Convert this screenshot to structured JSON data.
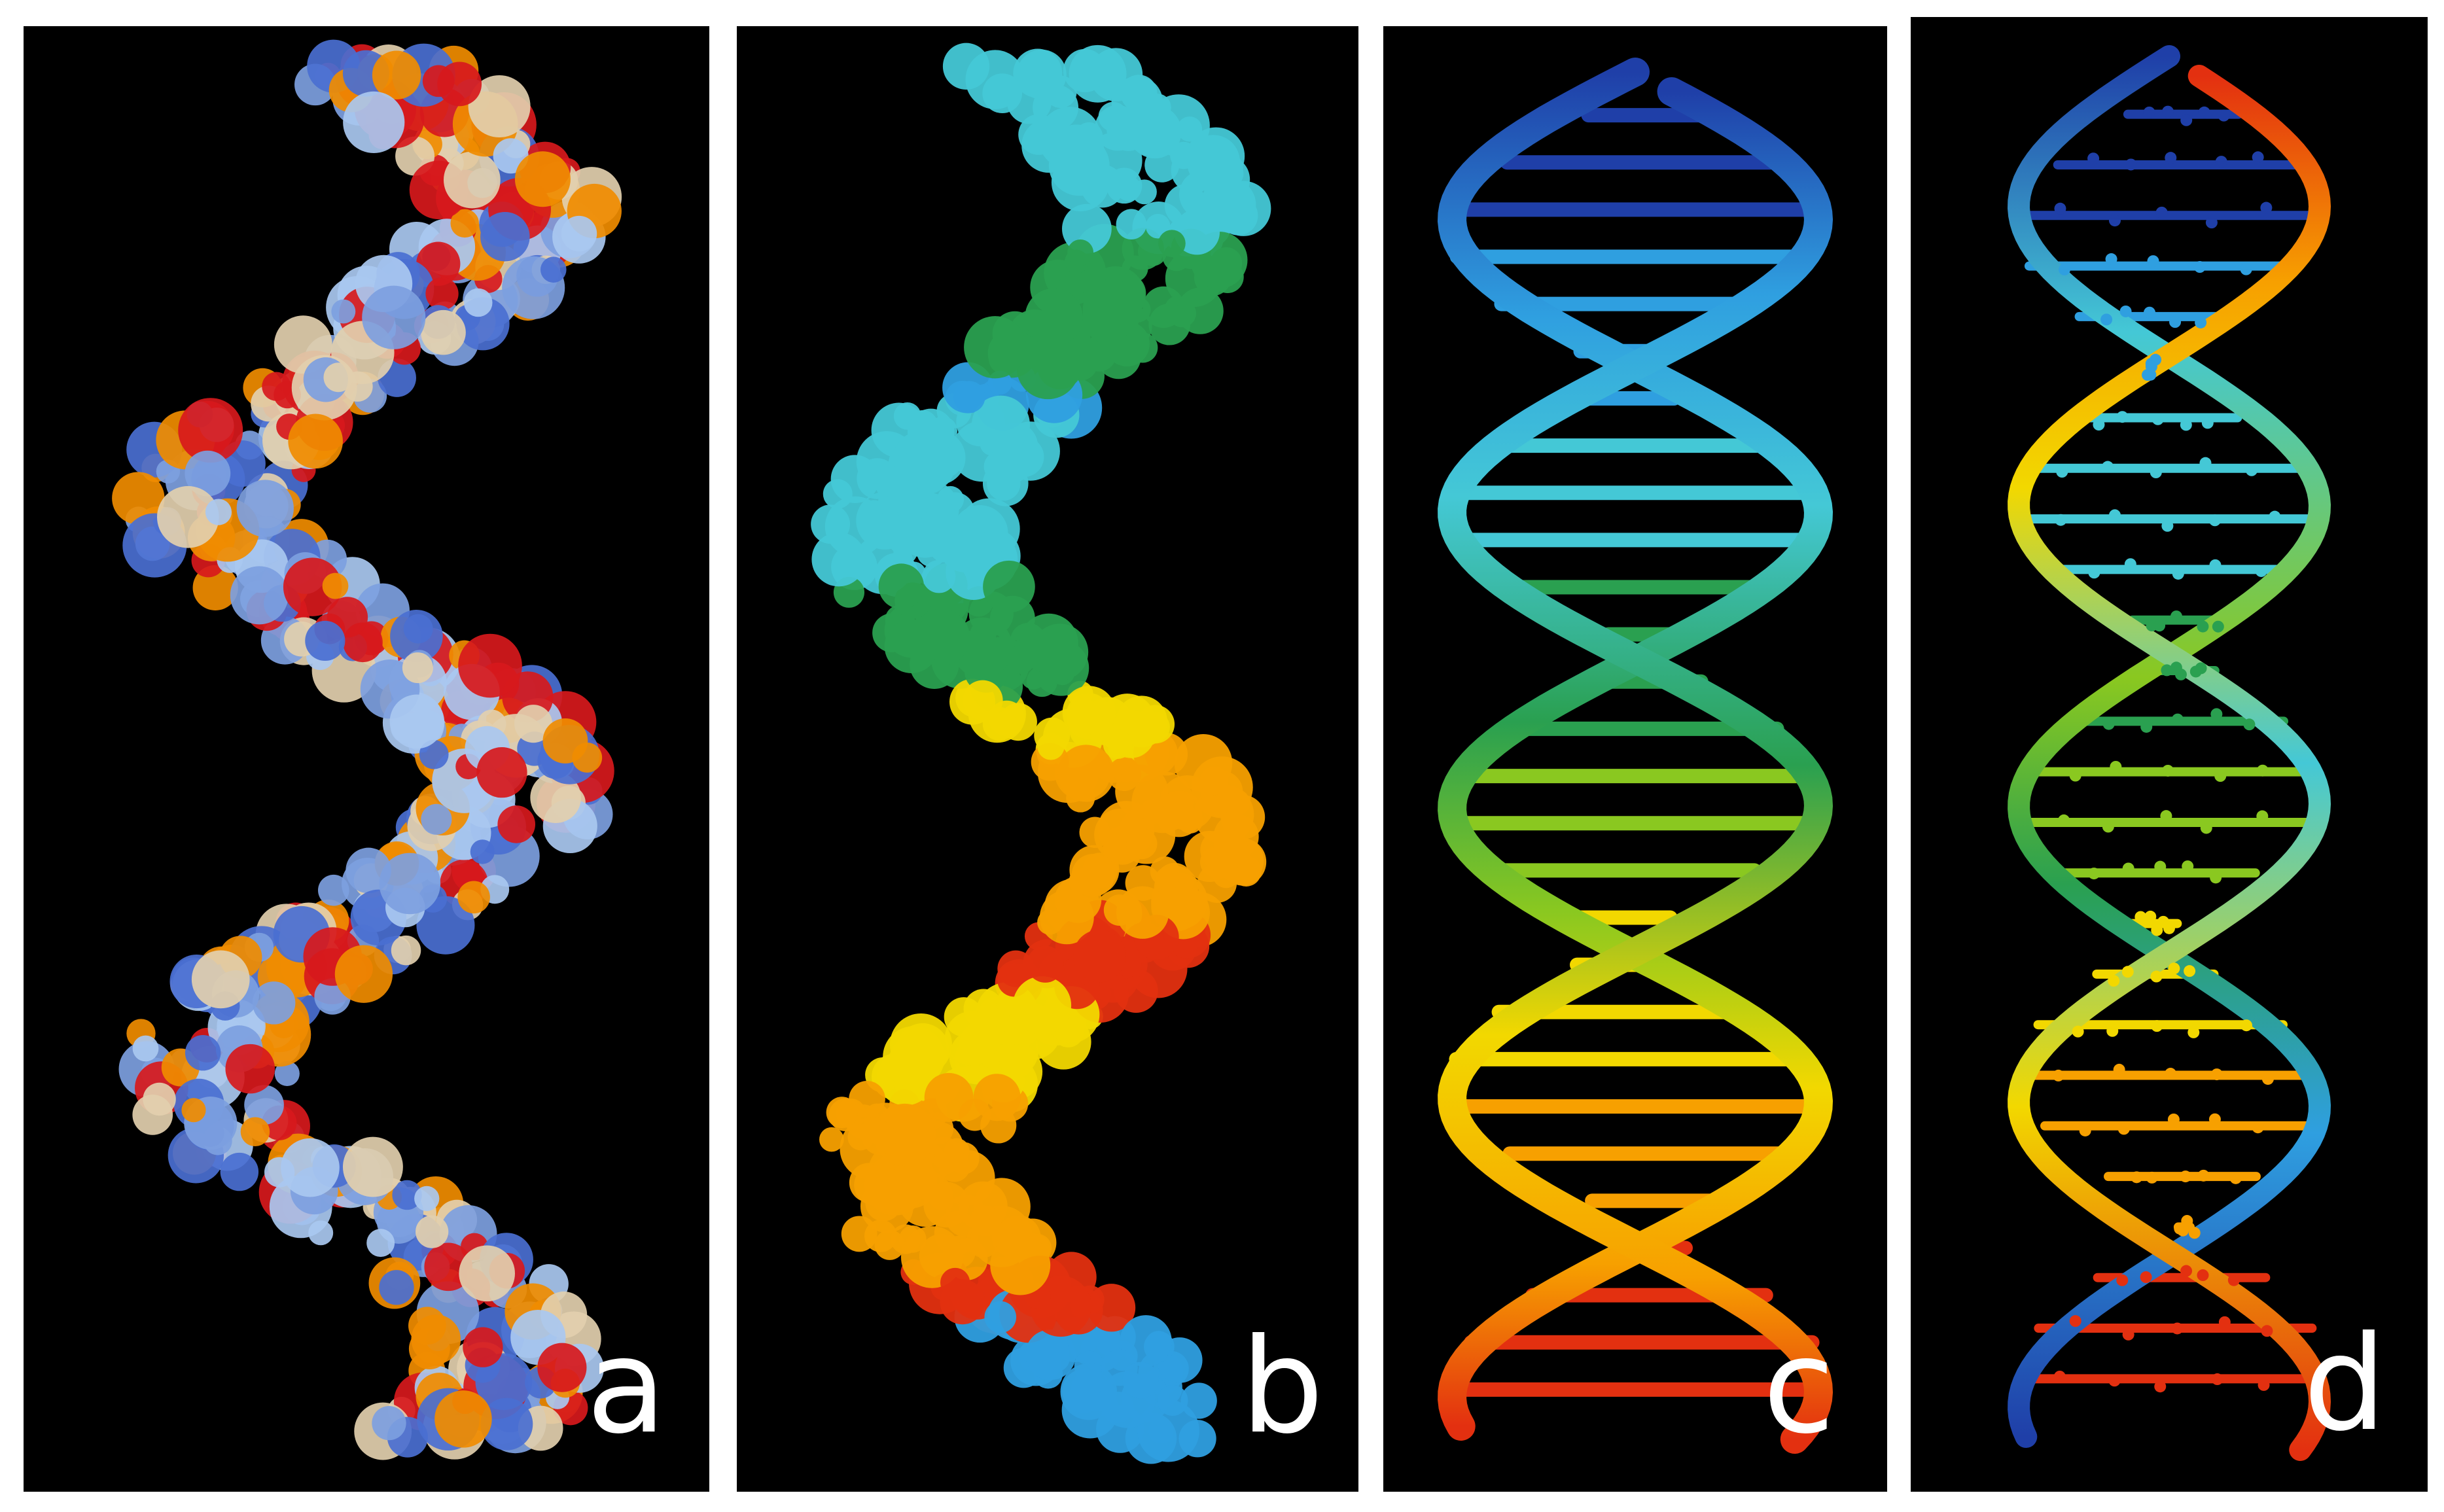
{
  "figure": {
    "panels": [
      {
        "label": "a",
        "depiction": "space-filling-surface",
        "icon": "dna-surface-atom-coloring-icon"
      },
      {
        "label": "b",
        "depiction": "space-filling-surface",
        "icon": "dna-surface-rainbow-icon"
      },
      {
        "label": "c",
        "depiction": "ribbon-ladder",
        "icon": "dna-ribbon-ladder-icon"
      },
      {
        "label": "d",
        "depiction": "ribbon-ball-and-stick",
        "icon": "dna-ribbon-ballstick-icon"
      }
    ],
    "colors": {
      "background": "#000000",
      "frame": "#ffffff",
      "label": "#ffffff",
      "atom_oxygen": "#d7191c",
      "atom_phosphorus": "#f08c00",
      "atom_nitrogen": "#4a6fd1",
      "atom_carbon": "#e2cfae",
      "rainbow": [
        "#1f3fa8",
        "#2f9fe0",
        "#44c8d6",
        "#2aa050",
        "#8ac820",
        "#f2d800",
        "#f7a000",
        "#e33010"
      ]
    }
  }
}
